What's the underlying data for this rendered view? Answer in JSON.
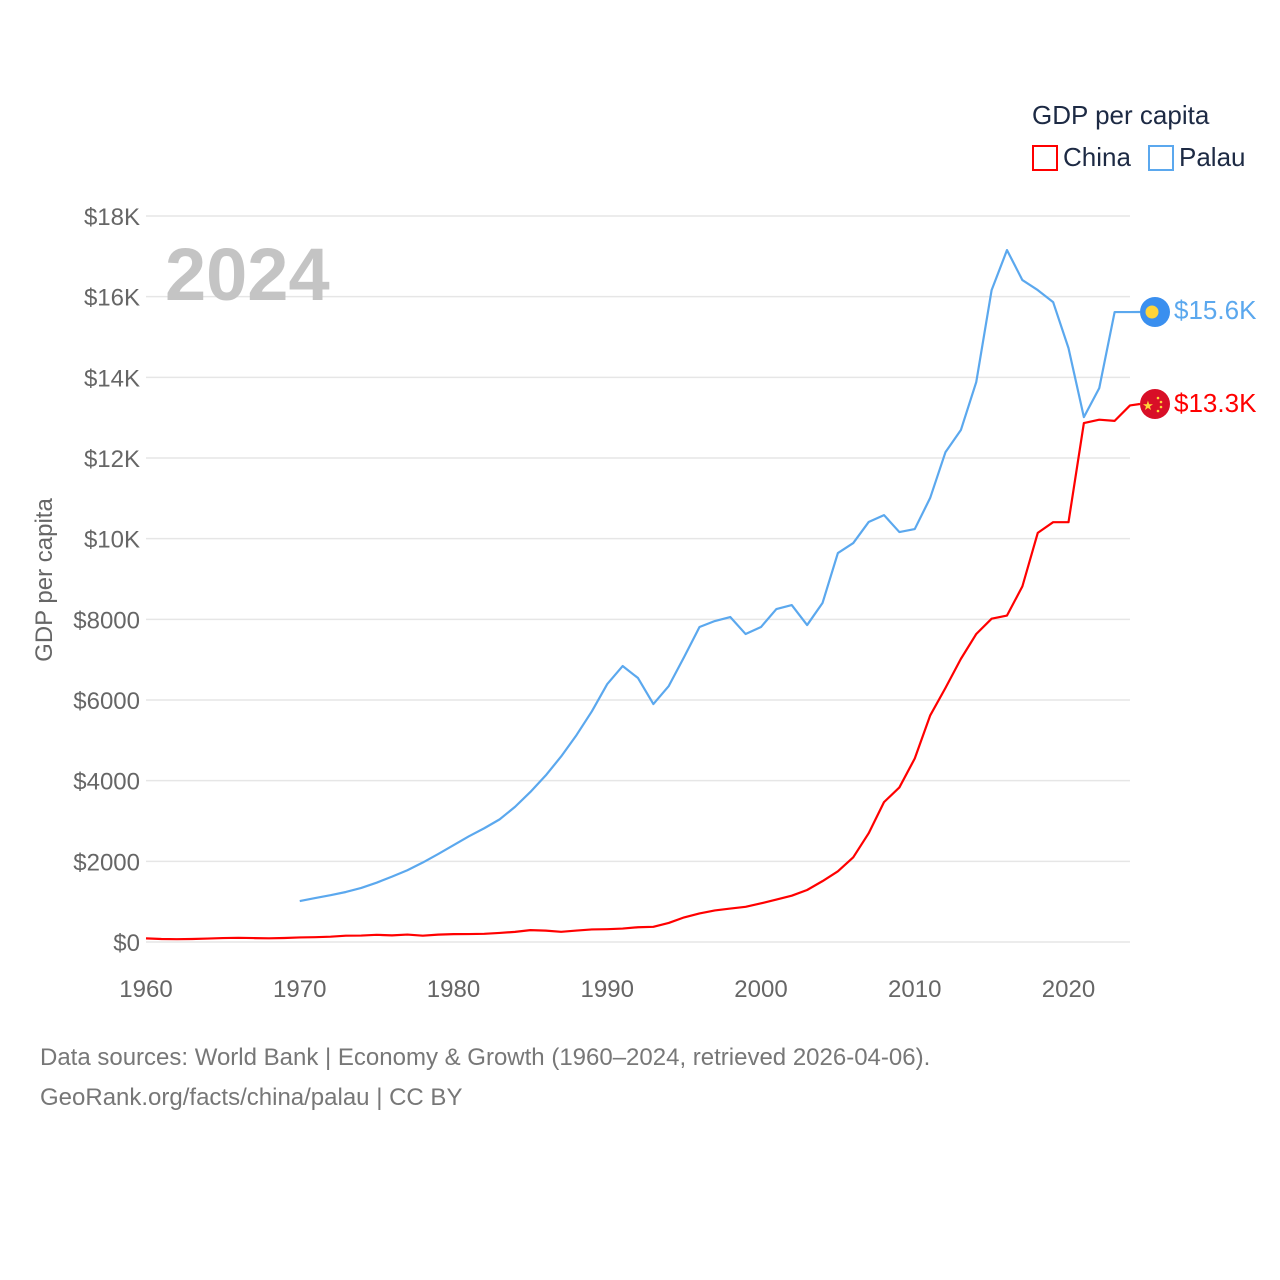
{
  "chart_data": {
    "type": "line",
    "title": "GDP per capita",
    "year_watermark": "2024",
    "ylabel": "GDP per capita",
    "xlabel": "",
    "xlim": [
      1960,
      2024
    ],
    "ylim": [
      0,
      18000
    ],
    "x_ticks": [
      1960,
      1970,
      1980,
      1990,
      2000,
      2010,
      2020
    ],
    "x_tick_labels": [
      "1960",
      "1970",
      "1980",
      "1990",
      "2000",
      "2010",
      "2020"
    ],
    "y_ticks": [
      0,
      2000,
      4000,
      6000,
      8000,
      10000,
      12000,
      14000,
      16000,
      18000
    ],
    "y_tick_labels": [
      "$0",
      "$2000",
      "$4000",
      "$6000",
      "$8000",
      "$10K",
      "$12K",
      "$14K",
      "$16K",
      "$18K"
    ],
    "grid": true,
    "legend_position": "top-right",
    "series": [
      {
        "name": "China",
        "color": "#ff0000",
        "end_label": "$13.3K",
        "flag": "china-flag",
        "start_year": 1960,
        "values": [
          90,
          75,
          70,
          74,
          85,
          98,
          104,
          97,
          91,
          100,
          113,
          119,
          132,
          157,
          160,
          178,
          165,
          185,
          156,
          183,
          195,
          197,
          203,
          225,
          251,
          294,
          282,
          252,
          284,
          311,
          318,
          333,
          366,
          377,
          473,
          610,
          709,
          782,
          829,
          873,
          959,
          1053,
          1149,
          1289,
          1509,
          1753,
          2099,
          2694,
          3468,
          3832,
          4550,
          5614,
          6301,
          7020,
          7636,
          8016,
          8094,
          8817,
          10143,
          10409,
          10409,
          12866,
          12950,
          12920,
          13303
        ]
      },
      {
        "name": "Palau",
        "color": "#5ba8ee",
        "end_label": "$15.6K",
        "flag": "palau-flag",
        "start_year": 1970,
        "values": [
          1016,
          1090,
          1160,
          1240,
          1340,
          1470,
          1620,
          1780,
          1970,
          2180,
          2400,
          2620,
          2820,
          3040,
          3350,
          3720,
          4130,
          4600,
          5130,
          5720,
          6396,
          6842,
          6545,
          5900,
          6346,
          7065,
          7809,
          7958,
          8057,
          7635,
          7809,
          8255,
          8354,
          7858,
          8404,
          9643,
          9891,
          10412,
          10585,
          10164,
          10238,
          11007,
          12147,
          12693,
          13882,
          16163,
          17155,
          16411,
          16163,
          15866,
          14725,
          13014,
          13733,
          15618
        ]
      }
    ]
  },
  "footer": {
    "line1": "Data sources: World Bank | Economy & Growth (1960–2024, retrieved 2026-04-06).",
    "line2": "GeoRank.org/facts/china/palau | CC BY"
  }
}
